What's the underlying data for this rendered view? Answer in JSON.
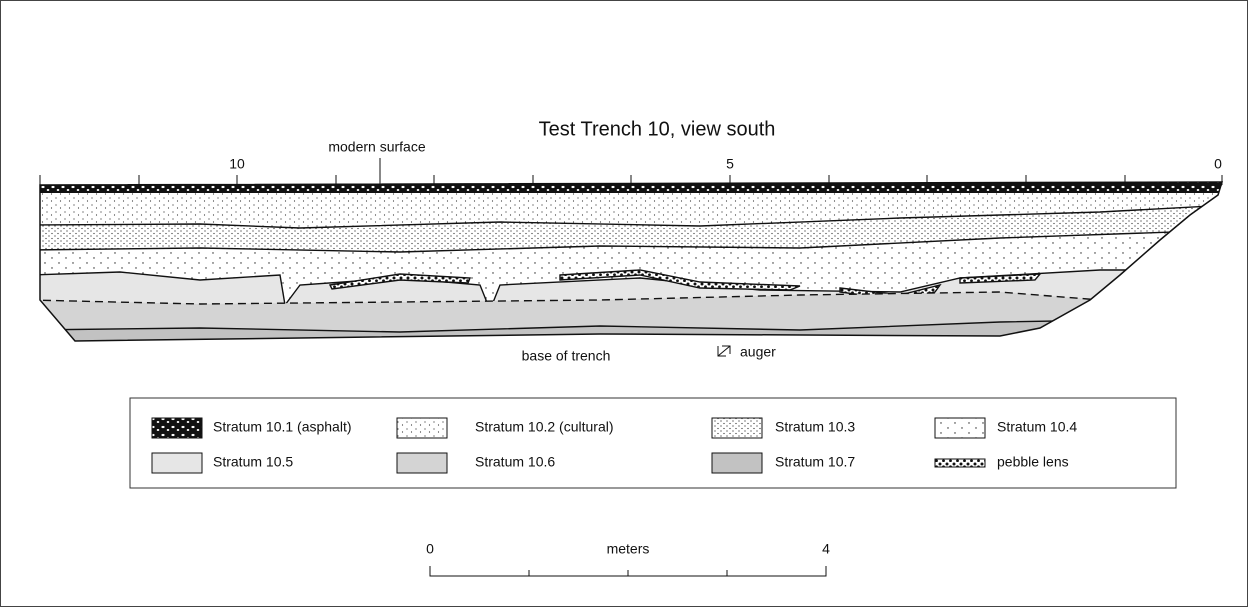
{
  "title": "Test Trench 10, view south",
  "ruler": {
    "labels": [
      "10",
      "5",
      "0"
    ]
  },
  "annotations": {
    "surface": "modern surface",
    "base": "base of trench",
    "auger": "auger"
  },
  "legend": [
    {
      "label": "Stratum 10.1 (asphalt)"
    },
    {
      "label": "Stratum 10.2 (cultural)"
    },
    {
      "label": "Stratum 10.3"
    },
    {
      "label": "Stratum 10.4"
    },
    {
      "label": "Stratum 10.5"
    },
    {
      "label": "Stratum 10.6"
    },
    {
      "label": "Stratum 10.7"
    },
    {
      "label": "pebble lens"
    }
  ],
  "scale_bar": {
    "start": "0",
    "unit": "meters",
    "end": "4"
  }
}
